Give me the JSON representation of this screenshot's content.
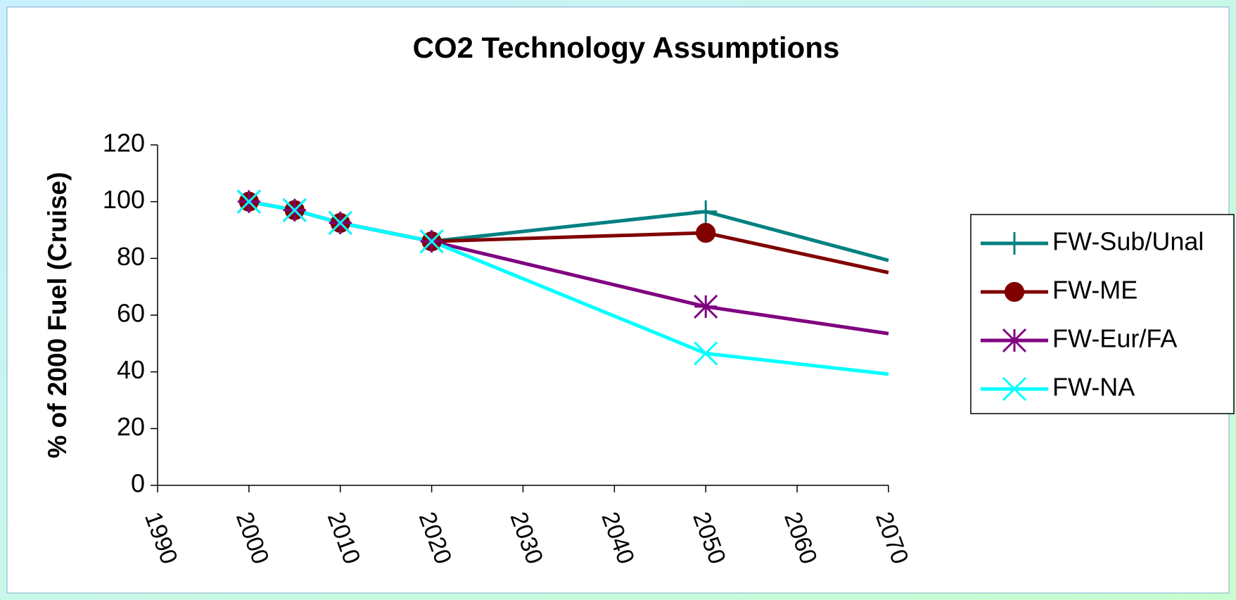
{
  "chart_data": {
    "type": "line",
    "title": "CO2 Technology Assumptions",
    "y_label": "% of 2000 Fuel (Cruise)",
    "xlim": [
      1990,
      2070
    ],
    "xticks": [
      1990,
      2000,
      2010,
      2020,
      2030,
      2040,
      2050,
      2060,
      2070
    ],
    "ylim": [
      0,
      120
    ],
    "yticks": [
      0,
      20,
      40,
      60,
      80,
      100,
      120
    ],
    "grid": false,
    "legend": "right",
    "series": [
      {
        "name": "FW-Sub/Unal",
        "color": "#008080",
        "marker": "plus",
        "x": [
          2000,
          2005,
          2010,
          2020,
          2050,
          2070
        ],
        "values": [
          100,
          97,
          92.5,
          86,
          96.5,
          79.3
        ]
      },
      {
        "name": "FW-ME",
        "color": "#800000",
        "marker": "circle",
        "x": [
          2000,
          2005,
          2010,
          2020,
          2050,
          2070
        ],
        "values": [
          100,
          97,
          92.5,
          86,
          89,
          75
        ]
      },
      {
        "name": "FW-Eur/FA",
        "color": "#800080",
        "marker": "star",
        "x": [
          2000,
          2005,
          2010,
          2020,
          2050,
          2070
        ],
        "values": [
          100,
          97,
          92.5,
          86,
          63,
          53.5
        ]
      },
      {
        "name": "FW-NA",
        "color": "#00FFFF",
        "marker": "x",
        "x": [
          2000,
          2005,
          2010,
          2020,
          2050,
          2070
        ],
        "values": [
          100,
          97,
          92.5,
          86,
          46.5,
          39.2
        ]
      }
    ]
  }
}
